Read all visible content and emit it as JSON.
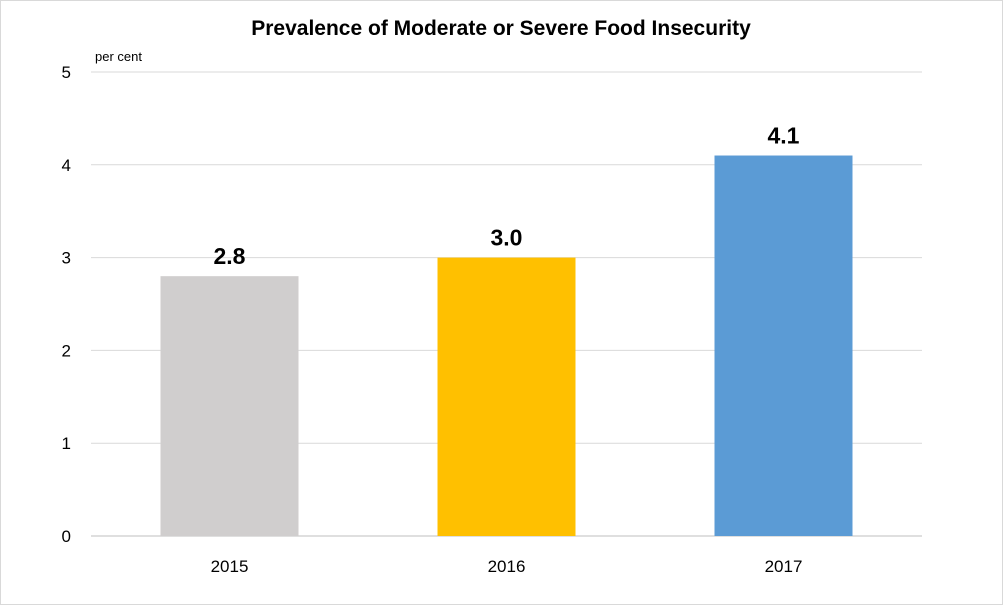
{
  "chart_data": {
    "type": "bar",
    "title": "Prevalence of Moderate or Severe Food Insecurity",
    "ylabel": "per cent",
    "xlabel": "",
    "categories": [
      "2015",
      "2016",
      "2017"
    ],
    "values": [
      2.8,
      3.0,
      4.1
    ],
    "value_labels": [
      "2.8",
      "3.0",
      "4.1"
    ],
    "colors": [
      "#d0cece",
      "#ffc000",
      "#5b9bd5"
    ],
    "ylim": [
      0,
      5
    ],
    "yticks": [
      0,
      1,
      2,
      3,
      4,
      5
    ],
    "ytick_labels": [
      "0",
      "1",
      "2",
      "3",
      "4",
      "5"
    ],
    "grid": true,
    "legend": "none"
  }
}
